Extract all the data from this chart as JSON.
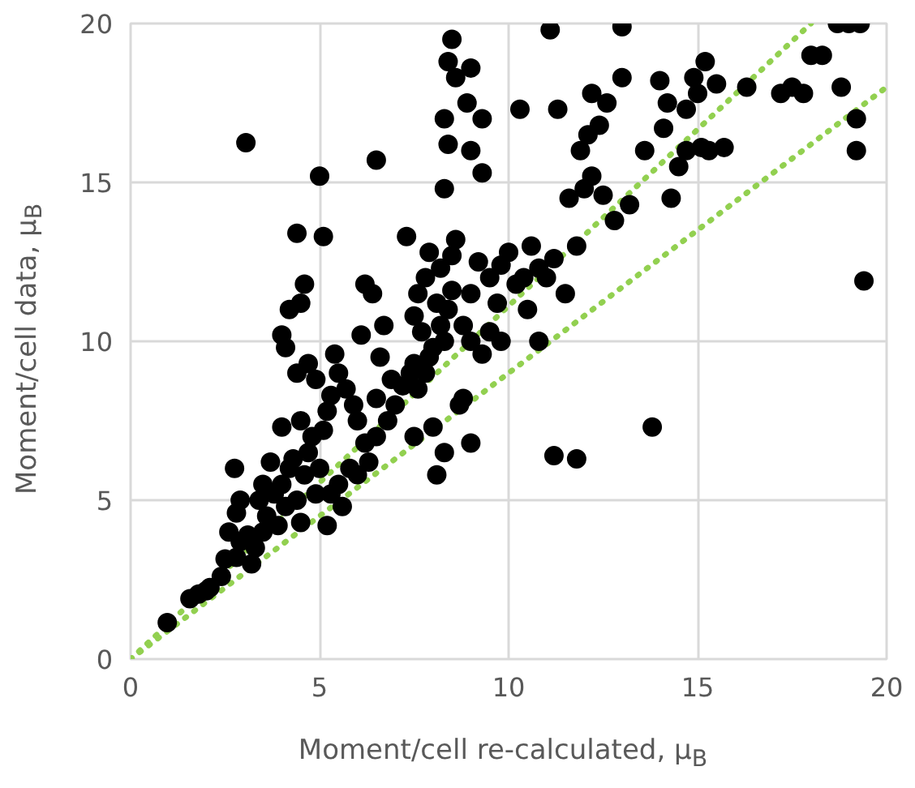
{
  "chart_data": {
    "type": "scatter",
    "xlabel": "Moment/cell re-calculated, μ$_{B}$",
    "ylabel": "Moment/cell data, μ$_{B}$",
    "xlim": [
      0,
      20
    ],
    "ylim": [
      0,
      20
    ],
    "xticks": [
      0,
      5,
      10,
      15,
      20
    ],
    "yticks": [
      0,
      5,
      10,
      15,
      20
    ],
    "grid": true,
    "marker": "circle",
    "series": [
      {
        "color": "#000000",
        "x": [
          0.97,
          1.57,
          1.8,
          2.0,
          2.1,
          2.4,
          2.5,
          2.8,
          2.9,
          2.75,
          3.05,
          2.6,
          2.8,
          2.9,
          3.1,
          3.2,
          3.3,
          3.5,
          3.6,
          3.4,
          3.8,
          3.9,
          4.0,
          4.2,
          4.1,
          4.4,
          4.5,
          4.6,
          4.3,
          4.7,
          4.8,
          4.5,
          4.0,
          3.7,
          3.5,
          4.9,
          5.0,
          5.1,
          5.2,
          5.3,
          4.9,
          4.7,
          4.4,
          4.1,
          4.0,
          4.5,
          4.6,
          4.2,
          4.4,
          5.1,
          5.0,
          5.4,
          5.5,
          5.7,
          5.9,
          6.0,
          6.2,
          5.8,
          5.5,
          5.3,
          5.2,
          5.6,
          6.0,
          6.3,
          6.5,
          6.8,
          6.5,
          6.9,
          6.6,
          6.1,
          6.7,
          6.2,
          6.5,
          7.3,
          7.0,
          7.2,
          7.4,
          7.5,
          7.6,
          7.8,
          7.9,
          8.0,
          7.7,
          7.5,
          7.6,
          7.8,
          7.9,
          8.1,
          8.2,
          8.3,
          8.4,
          8.5,
          8.2,
          8.5,
          8.6,
          8.3,
          8.4,
          8.3,
          8.4,
          8.6,
          8.5,
          9.0,
          8.9,
          9.3,
          9.0,
          9.3,
          9.5,
          9.2,
          9.0,
          8.8,
          9.0,
          9.3,
          9.5,
          9.8,
          9.7,
          9.8,
          10.0,
          10.2,
          10.4,
          10.6,
          10.5,
          10.8,
          11.0,
          10.8,
          8.0,
          8.3,
          8.8,
          7.5,
          8.1,
          8.7,
          9.0,
          11.2,
          11.5,
          11.8,
          11.6,
          12.0,
          12.2,
          12.5,
          11.9,
          12.1,
          11.3,
          11.1,
          12.2,
          12.6,
          12.4,
          13.0,
          13.0,
          12.8,
          13.2,
          11.2,
          11.8,
          13.8,
          13.6,
          14.0,
          14.2,
          14.5,
          14.3,
          14.1,
          14.7,
          14.9,
          15.2,
          15.0,
          15.5,
          15.3,
          15.7,
          15.1,
          14.7,
          16.3,
          17.2,
          17.5,
          17.8,
          18.0,
          18.3,
          18.7,
          19.0,
          19.3,
          19.2,
          19.4,
          19.2,
          18.8,
          10.3,
          6.4
        ],
        "values": [
          1.15,
          1.9,
          2.05,
          2.15,
          2.25,
          2.6,
          3.15,
          4.6,
          5.0,
          6.0,
          16.25,
          4.0,
          3.2,
          3.7,
          3.9,
          3.0,
          3.5,
          4.0,
          4.5,
          5.0,
          5.2,
          4.2,
          5.5,
          6.0,
          4.8,
          5.0,
          4.3,
          5.8,
          6.3,
          6.5,
          7.0,
          7.5,
          7.3,
          6.2,
          5.5,
          5.2,
          6.0,
          7.2,
          7.8,
          8.3,
          8.8,
          9.3,
          9.0,
          9.8,
          10.2,
          11.2,
          11.8,
          11.0,
          13.4,
          13.3,
          15.2,
          9.6,
          9.0,
          8.5,
          8.0,
          7.5,
          6.8,
          6.0,
          5.5,
          5.2,
          4.2,
          4.8,
          5.8,
          6.2,
          7.0,
          7.5,
          8.2,
          8.8,
          9.5,
          10.2,
          10.5,
          11.8,
          15.7,
          13.3,
          8.0,
          8.6,
          9.0,
          9.3,
          8.5,
          9.0,
          9.5,
          9.8,
          10.3,
          10.8,
          11.5,
          12.0,
          12.8,
          11.2,
          10.5,
          10.0,
          11.0,
          11.6,
          12.3,
          12.7,
          13.2,
          14.8,
          16.2,
          17.0,
          18.8,
          18.3,
          19.5,
          18.6,
          17.5,
          17.0,
          16.0,
          15.3,
          12.0,
          12.5,
          11.5,
          10.5,
          10.0,
          9.6,
          10.3,
          10.0,
          11.2,
          12.4,
          12.8,
          11.8,
          12.0,
          13.0,
          11.0,
          12.3,
          12.0,
          10.0,
          7.3,
          6.5,
          8.2,
          7.0,
          5.8,
          8.0,
          6.8,
          12.6,
          11.5,
          13.0,
          14.5,
          14.8,
          15.2,
          14.6,
          16.0,
          16.5,
          17.3,
          19.8,
          17.8,
          17.5,
          16.8,
          18.3,
          19.9,
          13.8,
          14.3,
          6.4,
          6.3,
          7.3,
          16.0,
          18.2,
          17.5,
          15.5,
          14.5,
          16.7,
          17.3,
          18.3,
          18.8,
          17.8,
          18.1,
          16.0,
          16.1,
          16.1,
          16.0,
          18.0,
          17.8,
          18.0,
          17.8,
          19.0,
          19.0,
          20.0,
          20.0,
          20.0,
          16.0,
          11.9,
          17.0,
          18.0,
          17.3,
          11.5
        ]
      },
      {
        "type": "line",
        "color": "#92d050",
        "line_style": "dotted",
        "marker": "none",
        "x": [
          0,
          18
        ],
        "values": [
          0,
          20
        ]
      },
      {
        "type": "line",
        "color": "#92d050",
        "line_style": "dotted",
        "marker": "none",
        "x": [
          0,
          20
        ],
        "values": [
          0,
          18
        ]
      }
    ]
  }
}
